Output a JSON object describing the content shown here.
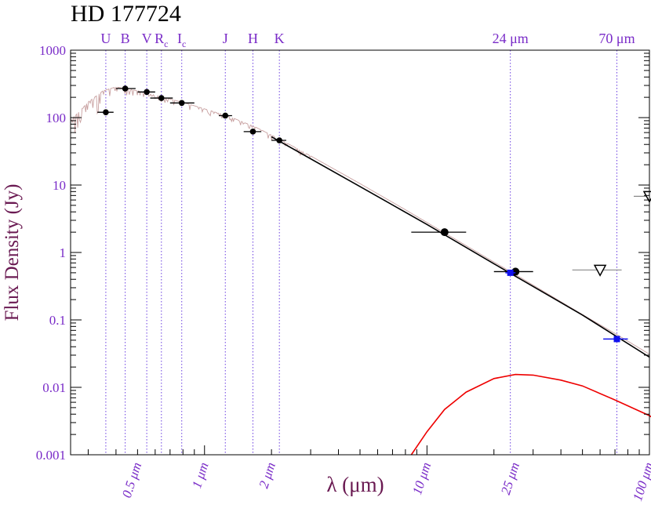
{
  "chart_data": {
    "type": "scatter",
    "title": "HD 177724",
    "xlabel": "λ (μm)",
    "ylabel": "Flux Density (Jy)",
    "x_scale": "log",
    "y_scale": "log",
    "xlim": [
      0.25,
      100
    ],
    "ylim": [
      0.001,
      1000
    ],
    "grid": false,
    "y_ticks": [
      {
        "value": 1000,
        "label": "1000"
      },
      {
        "value": 100,
        "label": "100"
      },
      {
        "value": 10,
        "label": "10"
      },
      {
        "value": 1,
        "label": "1"
      },
      {
        "value": 0.1,
        "label": "0.1"
      },
      {
        "value": 0.01,
        "label": "0.01"
      },
      {
        "value": 0.001,
        "label": "0.001"
      }
    ],
    "x_ticks": [
      {
        "value": 0.5,
        "label": "0.5 μm"
      },
      {
        "value": 1,
        "label": "1 μm"
      },
      {
        "value": 2,
        "label": "2 μm"
      },
      {
        "value": 10,
        "label": "10 μm"
      },
      {
        "value": 25,
        "label": "25 μm"
      },
      {
        "value": 100,
        "label": "100 μm"
      }
    ],
    "bands": [
      {
        "label": "U",
        "sub": "",
        "wavelength": 0.36
      },
      {
        "label": "B",
        "sub": "",
        "wavelength": 0.44
      },
      {
        "label": "V",
        "sub": "",
        "wavelength": 0.55
      },
      {
        "label": "R",
        "sub": "c",
        "wavelength": 0.64
      },
      {
        "label": "I",
        "sub": "c",
        "wavelength": 0.79
      },
      {
        "label": "J",
        "sub": "",
        "wavelength": 1.24
      },
      {
        "label": "H",
        "sub": "",
        "wavelength": 1.65
      },
      {
        "label": "K",
        "sub": "",
        "wavelength": 2.17
      },
      {
        "label": "24 μm",
        "sub": "",
        "wavelength": 23.7
      },
      {
        "label": "70 μm",
        "sub": "",
        "wavelength": 71.4
      }
    ],
    "photometry": [
      {
        "x": 0.36,
        "y": 120,
        "xerr": [
          0.33,
          0.39
        ]
      },
      {
        "x": 0.44,
        "y": 270,
        "xerr": [
          0.4,
          0.49
        ]
      },
      {
        "x": 0.55,
        "y": 240,
        "xerr": [
          0.5,
          0.6
        ]
      },
      {
        "x": 0.64,
        "y": 195,
        "xerr": [
          0.57,
          0.72
        ]
      },
      {
        "x": 0.79,
        "y": 165,
        "xerr": [
          0.7,
          0.9
        ]
      },
      {
        "x": 1.24,
        "y": 107,
        "xerr": [
          1.16,
          1.33
        ]
      },
      {
        "x": 1.65,
        "y": 62,
        "xerr": [
          1.5,
          1.8
        ]
      },
      {
        "x": 2.17,
        "y": 46,
        "xerr": [
          2.0,
          2.33
        ]
      },
      {
        "x": 12.0,
        "y": 2.0,
        "xerr": [
          8.5,
          15.0
        ]
      },
      {
        "x": 25.0,
        "y": 0.52,
        "xerr": [
          20.0,
          30.0
        ]
      }
    ],
    "mips": [
      {
        "x": 23.7,
        "y": 0.5,
        "xerr": [
          22.5,
          25.0
        ]
      },
      {
        "x": 71.4,
        "y": 0.052,
        "xerr": [
          62.0,
          80.0
        ]
      }
    ],
    "upper_limits": [
      {
        "x": 60.0,
        "y": 0.55,
        "xerr": [
          45.0,
          75.0
        ]
      },
      {
        "x": 100.0,
        "y": 6.8,
        "xerr": [
          85.0,
          115.0
        ]
      }
    ],
    "photosphere_model": [
      [
        0.25,
        90
      ],
      [
        0.3,
        170
      ],
      [
        0.35,
        250
      ],
      [
        0.4,
        285
      ],
      [
        0.5,
        250
      ],
      [
        0.6,
        215
      ],
      [
        0.8,
        168
      ],
      [
        1.0,
        135
      ],
      [
        1.3,
        103
      ],
      [
        1.7,
        72
      ],
      [
        2.2,
        47
      ],
      [
        3.0,
        27
      ],
      [
        5.0,
        10.5
      ],
      [
        8.0,
        4.3
      ],
      [
        12.0,
        1.95
      ],
      [
        20.0,
        0.72
      ],
      [
        25.0,
        0.47
      ],
      [
        50.0,
        0.12
      ],
      [
        70.0,
        0.063
      ],
      [
        100.0,
        0.031
      ]
    ],
    "photosphere_fit": [
      [
        2.0,
        52
      ],
      [
        5.0,
        9.5
      ],
      [
        10.0,
        2.6
      ],
      [
        20.0,
        0.68
      ],
      [
        50.0,
        0.118
      ],
      [
        100.0,
        0.028
      ]
    ],
    "dust_blackbody": [
      [
        8.5,
        0.001
      ],
      [
        10.0,
        0.0022
      ],
      [
        12.0,
        0.0047
      ],
      [
        15.0,
        0.0085
      ],
      [
        20.0,
        0.0135
      ],
      [
        25.0,
        0.0155
      ],
      [
        30.0,
        0.0152
      ],
      [
        40.0,
        0.0128
      ],
      [
        50.0,
        0.0105
      ],
      [
        70.0,
        0.0065
      ],
      [
        100.0,
        0.0038
      ],
      [
        110.0,
        0.0031
      ]
    ],
    "colors": {
      "axis_labels": "#6a1a52",
      "ticks": "#7a2cc8",
      "band_lines": "#6b3fe0",
      "photometry": "#000000",
      "mips": "#1010ee",
      "model": "#c8a0a0",
      "fit": "#000000",
      "dust": "#ee0000",
      "limits": "#000000",
      "limit_err": "#888888"
    }
  }
}
